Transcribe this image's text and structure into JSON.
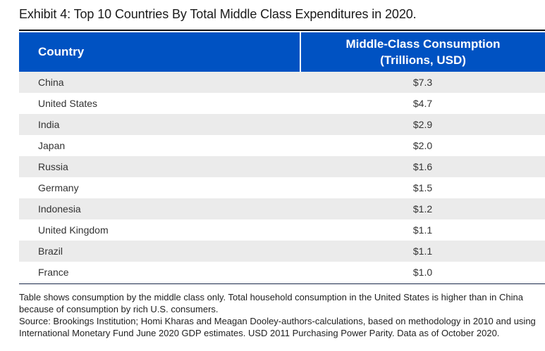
{
  "title": "Exhibit 4: Top 10 Countries By Total Middle Class Expenditures in 2020.",
  "table": {
    "headers": [
      "Country",
      "Middle-Class Consumption",
      "(Trillions, USD)"
    ],
    "rows": [
      {
        "country": "China",
        "value": "$7.3"
      },
      {
        "country": "United States",
        "value": "$4.7"
      },
      {
        "country": "India",
        "value": "$2.9"
      },
      {
        "country": "Japan",
        "value": "$2.0"
      },
      {
        "country": "Russia",
        "value": "$1.6"
      },
      {
        "country": "Germany",
        "value": "$1.5"
      },
      {
        "country": "Indonesia",
        "value": "$1.2"
      },
      {
        "country": "United Kingdom",
        "value": "$1.1"
      },
      {
        "country": "Brazil",
        "value": "$1.1"
      },
      {
        "country": "France",
        "value": "$1.0"
      }
    ]
  },
  "notes": {
    "note": "Table shows consumption by the middle class only. Total household consumption in the United States is higher than in China because of consumption by rich U.S. consumers.",
    "source": "Source: Brookings Institution; Homi Kharas and Meagan Dooley-authors-calculations, based on methodology in 2010 and using International Monetary Fund June 2020 GDP estimates. USD 2011 Purchasing Power Parity. Data as of October 2020."
  },
  "colors": {
    "header_bg": "#0052c2",
    "row_alt_bg": "#ebebeb"
  }
}
